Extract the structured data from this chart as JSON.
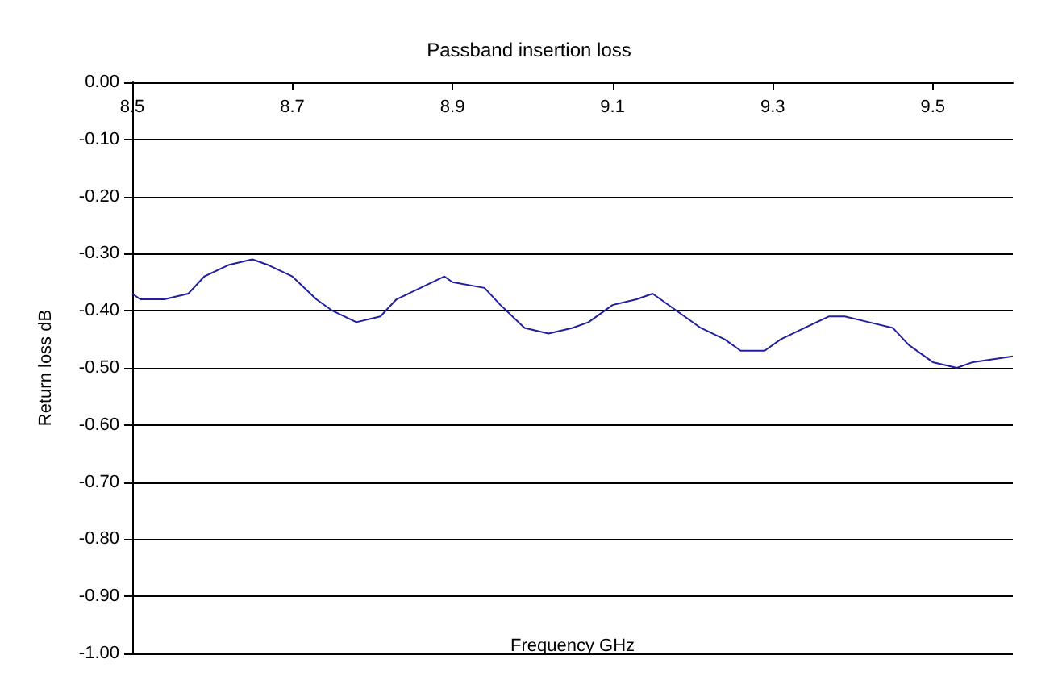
{
  "chart_data": {
    "type": "line",
    "title": "Passband insertion loss",
    "xlabel": "Frequency GHz",
    "ylabel": "Return loss dB",
    "x": [
      8.5,
      8.51,
      8.54,
      8.57,
      8.59,
      8.62,
      8.65,
      8.67,
      8.7,
      8.73,
      8.75,
      8.78,
      8.81,
      8.83,
      8.86,
      8.89,
      8.9,
      8.94,
      8.96,
      8.99,
      9.02,
      9.05,
      9.07,
      9.1,
      9.13,
      9.15,
      9.18,
      9.21,
      9.24,
      9.26,
      9.29,
      9.31,
      9.34,
      9.37,
      9.39,
      9.42,
      9.45,
      9.47,
      9.5,
      9.53,
      9.55,
      9.6
    ],
    "series": [
      {
        "color": "#1f1f9f",
        "values": [
          -0.37,
          -0.38,
          -0.38,
          -0.37,
          -0.34,
          -0.32,
          -0.31,
          -0.32,
          -0.34,
          -0.38,
          -0.4,
          -0.42,
          -0.41,
          -0.38,
          -0.36,
          -0.34,
          -0.35,
          -0.36,
          -0.39,
          -0.43,
          -0.44,
          -0.43,
          -0.42,
          -0.39,
          -0.38,
          -0.37,
          -0.4,
          -0.43,
          -0.45,
          -0.47,
          -0.47,
          -0.45,
          -0.43,
          -0.41,
          -0.41,
          -0.42,
          -0.43,
          -0.46,
          -0.49,
          -0.5,
          -0.49,
          -0.48
        ]
      }
    ],
    "xlim": [
      8.5,
      9.6
    ],
    "xticks": [
      8.5,
      8.7,
      8.9,
      9.1,
      9.3,
      9.5
    ],
    "ylim": [
      -1,
      0
    ],
    "yticks": [
      {
        "value": 0,
        "label": "0.00"
      },
      {
        "value": -0.1,
        "label": "-0.10"
      },
      {
        "value": -0.2,
        "label": "-0.20"
      },
      {
        "value": -0.3,
        "label": "-0.30"
      },
      {
        "value": -0.4,
        "label": "-0.40"
      },
      {
        "value": -0.5,
        "label": "-0.50"
      },
      {
        "value": -0.6,
        "label": "-0.60"
      },
      {
        "value": -0.7,
        "label": "-0.70"
      },
      {
        "value": -0.8,
        "label": "-0.80"
      },
      {
        "value": -0.9,
        "label": "-0.90"
      },
      {
        "value": -1,
        "label": "-1.00"
      }
    ],
    "grid": "y",
    "marker": "none",
    "line_style": "solid"
  }
}
